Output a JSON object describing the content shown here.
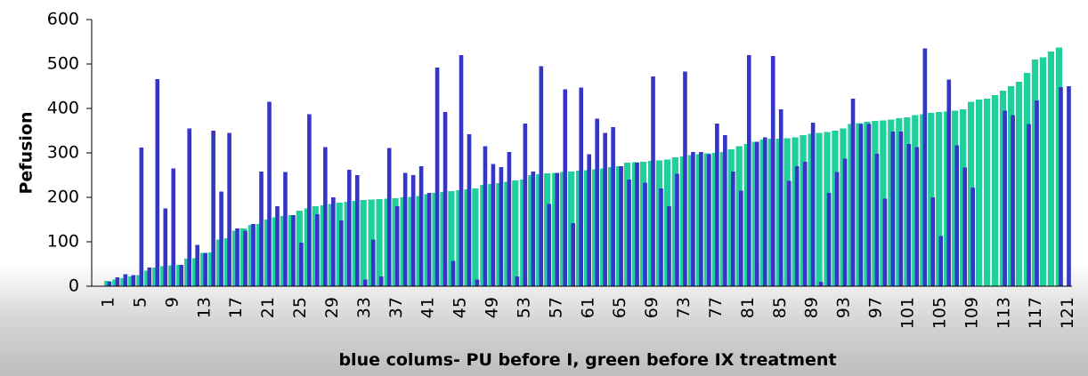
{
  "chart_data": {
    "type": "bar",
    "x_label": "blue colums- PU before I, green before IX treatment",
    "y_label": "Pefusion",
    "categories": [
      "1",
      null,
      null,
      null,
      "5",
      null,
      null,
      null,
      "9",
      null,
      null,
      null,
      "13",
      null,
      null,
      null,
      "17",
      null,
      null,
      null,
      "21",
      null,
      null,
      null,
      "25",
      null,
      null,
      null,
      "29",
      null,
      null,
      null,
      "33",
      null,
      null,
      null,
      "37",
      null,
      null,
      null,
      "41",
      null,
      null,
      null,
      "45",
      null,
      null,
      null,
      "49",
      null,
      null,
      null,
      "53",
      null,
      null,
      null,
      "57",
      null,
      null,
      null,
      "61",
      null,
      null,
      null,
      "65",
      null,
      null,
      null,
      "69",
      null,
      null,
      null,
      "73",
      null,
      null,
      null,
      "77",
      null,
      null,
      null,
      "81",
      null,
      null,
      null,
      "85",
      null,
      null,
      null,
      "89",
      null,
      null,
      null,
      "93",
      null,
      null,
      null,
      "97",
      null,
      null,
      null,
      "101",
      null,
      null,
      null,
      "105",
      null,
      null,
      null,
      "109",
      null,
      null,
      null,
      "113",
      null,
      null,
      null,
      "117",
      null,
      null,
      null,
      "121"
    ],
    "series": [
      {
        "color": "#1fd09c",
        "values": [
          12,
          15,
          18,
          22,
          25,
          35,
          42,
          45,
          47,
          48,
          62,
          63,
          75,
          76,
          105,
          108,
          125,
          130,
          138,
          140,
          150,
          155,
          158,
          160,
          170,
          175,
          180,
          182,
          185,
          188,
          190,
          192,
          194,
          195,
          196,
          197,
          198,
          200,
          201,
          203,
          207,
          210,
          212,
          214,
          216,
          218,
          220,
          228,
          230,
          232,
          235,
          238,
          240,
          250,
          252,
          254,
          255,
          257,
          258,
          260,
          261,
          263,
          265,
          268,
          270,
          278,
          279,
          280,
          282,
          283,
          285,
          290,
          292,
          295,
          297,
          299,
          300,
          302,
          308,
          315,
          320,
          325,
          330,
          332,
          332,
          333,
          335,
          340,
          343,
          345,
          347,
          350,
          355,
          365,
          367,
          370,
          372,
          373,
          375,
          378,
          380,
          385,
          387,
          390,
          392,
          393,
          395,
          398,
          415,
          420,
          422,
          430,
          440,
          450,
          460,
          480,
          510,
          515,
          528,
          537,
          null
        ]
      },
      {
        "color": "#3535c8",
        "values": [
          10,
          20,
          27,
          25,
          312,
          42,
          466,
          175,
          265,
          48,
          355,
          93,
          75,
          350,
          213,
          345,
          130,
          125,
          140,
          258,
          415,
          180,
          257,
          160,
          98,
          387,
          162,
          313,
          200,
          148,
          262,
          250,
          15,
          105,
          22,
          311,
          180,
          255,
          250,
          270,
          210,
          492,
          392,
          57,
          520,
          342,
          15,
          315,
          275,
          268,
          302,
          22,
          366,
          258,
          495,
          185,
          255,
          443,
          142,
          447,
          297,
          377,
          345,
          358,
          270,
          240,
          278,
          233,
          472,
          220,
          180,
          253,
          483,
          302,
          302,
          297,
          366,
          340,
          258,
          215,
          520,
          325,
          335,
          518,
          398,
          237,
          270,
          280,
          368,
          10,
          210,
          257,
          287,
          422,
          365,
          365,
          298,
          197,
          348,
          348,
          320,
          313,
          535,
          200,
          113,
          465,
          317,
          267,
          222,
          null,
          null,
          null,
          395,
          385,
          null,
          365,
          418,
          null,
          null,
          448,
          450
        ]
      }
    ],
    "ylim": [
      0,
      600
    ],
    "yticks": [
      0,
      100,
      200,
      300,
      400,
      500,
      600
    ]
  }
}
